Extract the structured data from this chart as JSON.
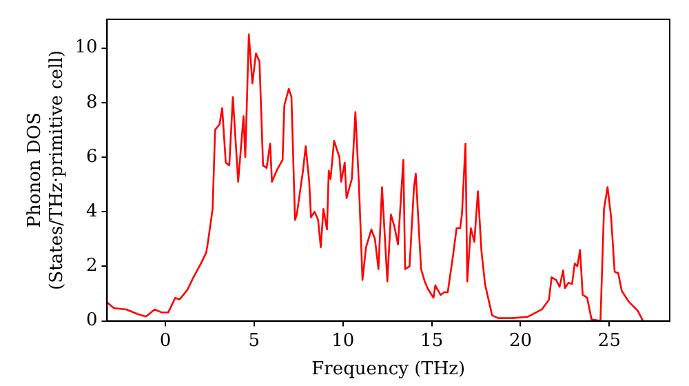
{
  "chart_data": {
    "type": "line",
    "xlabel": "Frequency (THz)",
    "ylabel": "Phonon DOS\n(States/THz·primitive cell)",
    "xlim": [
      -3.28,
      28.4
    ],
    "ylim": [
      0,
      11.05
    ],
    "xticks": [
      0,
      5,
      10,
      15,
      20,
      25
    ],
    "yticks": [
      0,
      2,
      4,
      6,
      8,
      10
    ],
    "grid": false,
    "legend": false,
    "marker": "none",
    "line_style": "solid",
    "series": [
      {
        "color": "#ff0000",
        "x": [
          -3.28,
          -2.9,
          -2.2,
          -1.6,
          -1.1,
          -0.6,
          -0.2,
          0.16,
          0.55,
          0.8,
          1.25,
          1.56,
          2.0,
          2.3,
          2.4,
          2.66,
          2.8,
          3.05,
          3.2,
          3.4,
          3.6,
          3.8,
          4.1,
          4.4,
          4.5,
          4.7,
          4.9,
          5.1,
          5.3,
          5.5,
          5.7,
          5.9,
          6.0,
          6.3,
          6.6,
          6.7,
          6.95,
          7.1,
          7.3,
          7.4,
          7.75,
          7.9,
          8.1,
          8.2,
          8.4,
          8.6,
          8.75,
          8.9,
          9.1,
          9.2,
          9.3,
          9.5,
          9.8,
          9.9,
          10.1,
          10.2,
          10.5,
          10.7,
          10.9,
          11.1,
          11.3,
          11.6,
          11.8,
          12.0,
          12.2,
          12.5,
          12.7,
          12.9,
          13.1,
          13.4,
          13.5,
          13.75,
          14.0,
          14.1,
          14.4,
          14.6,
          14.8,
          15.1,
          15.2,
          15.5,
          15.7,
          15.9,
          16.2,
          16.4,
          16.6,
          16.7,
          16.9,
          17.0,
          17.2,
          17.4,
          17.6,
          17.8,
          18.0,
          18.4,
          18.75,
          19.5,
          20.4,
          21.2,
          21.6,
          21.75,
          22.0,
          22.2,
          22.4,
          22.5,
          22.7,
          22.9,
          23.05,
          23.2,
          23.35,
          23.5,
          23.75,
          24.0,
          24.5,
          24.7,
          24.9,
          25.1,
          25.3,
          25.5,
          25.7,
          26.1,
          26.6,
          26.9
        ],
        "values": [
          0.68,
          0.47,
          0.42,
          0.26,
          0.16,
          0.42,
          0.31,
          0.31,
          0.84,
          0.79,
          1.15,
          1.57,
          2.1,
          2.5,
          2.9,
          4.1,
          7.0,
          7.2,
          7.8,
          5.8,
          5.7,
          8.2,
          5.1,
          7.5,
          6.0,
          10.5,
          8.7,
          9.8,
          9.5,
          5.7,
          5.6,
          6.5,
          5.1,
          5.55,
          5.9,
          7.9,
          8.5,
          8.2,
          3.7,
          3.9,
          5.5,
          6.4,
          5.1,
          3.8,
          4.0,
          3.7,
          2.7,
          4.1,
          3.35,
          5.5,
          5.2,
          6.6,
          6.0,
          5.1,
          5.8,
          4.5,
          5.2,
          7.65,
          5.0,
          1.5,
          2.7,
          3.35,
          3.0,
          1.9,
          4.9,
          1.45,
          3.9,
          3.45,
          2.8,
          5.9,
          1.9,
          2.0,
          4.9,
          5.4,
          1.9,
          1.45,
          1.15,
          0.85,
          1.3,
          0.95,
          1.05,
          1.05,
          2.4,
          3.4,
          3.4,
          3.9,
          6.5,
          1.45,
          3.4,
          2.9,
          4.75,
          2.55,
          1.35,
          0.2,
          0.1,
          0.1,
          0.15,
          0.42,
          0.78,
          1.6,
          1.5,
          1.25,
          1.85,
          1.2,
          1.4,
          1.35,
          2.1,
          2.0,
          2.6,
          0.95,
          0.85,
          0.05,
          0,
          4.1,
          4.9,
          3.8,
          1.8,
          1.75,
          1.1,
          0.7,
          0.37,
          0
        ]
      }
    ]
  }
}
